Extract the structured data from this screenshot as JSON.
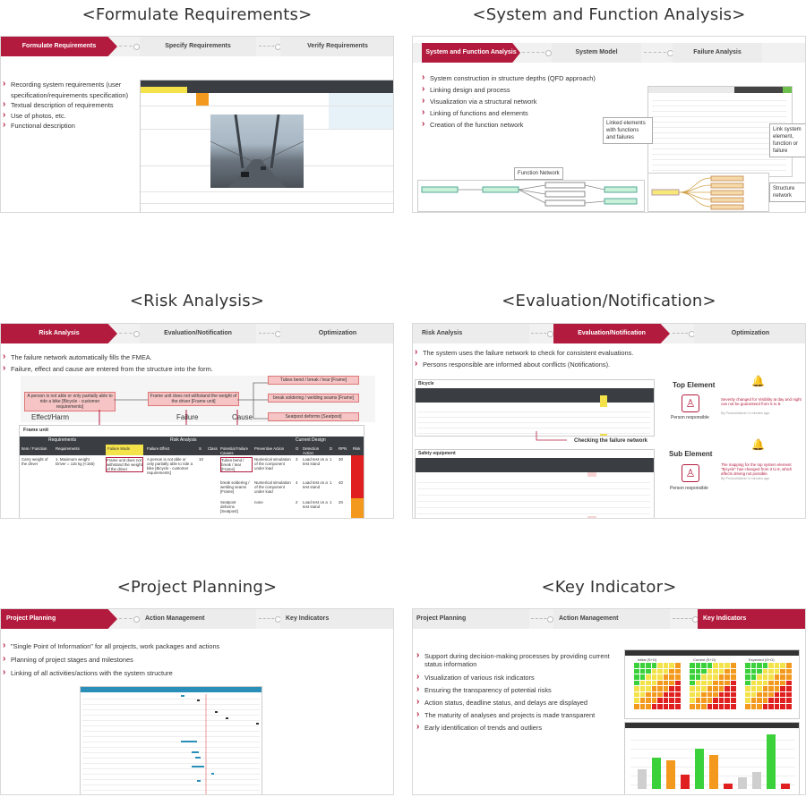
{
  "sections": [
    {
      "title": "<Formulate Requirements>",
      "tabs": [
        "Formulate Requirements",
        "Specify Requirements",
        "Verify Requirements"
      ],
      "active": 0,
      "bullets": [
        "Recording system requirements (user specification/requirements specification)",
        "Textual description of requirements",
        "Use of photos, etc.",
        "Functional description"
      ]
    },
    {
      "title": "<System and Function Analysis>",
      "tabs": [
        "System and Function Analysis",
        "System Model",
        "Failure Analysis"
      ],
      "active": 0,
      "bullets": [
        "System construction in structure depths (QFD approach)",
        "Linking design and process",
        "Visualization via a structural network",
        "Linking of functions and elements",
        "Creation of the function network"
      ],
      "callouts": [
        "Linked elements with functions and failures",
        "Link system element, function or failure",
        "Function Network",
        "Structure network"
      ]
    },
    {
      "title": "<Risk Analysis>",
      "tabs": [
        "Risk Analysis",
        "Evaluation/Notification",
        "Optimization"
      ],
      "active": 0,
      "bullets": [
        "The failure network automatically fills the FMEA.",
        "Failure, effect and cause are entered from the structure into the form."
      ],
      "labels": [
        "Effect/Harm",
        "Failure",
        "Cause"
      ],
      "boxes": [
        "A person is not able or only partially able to ride a bike [Bicycle - customer requirements]",
        "Frame unit does not withstand the weight of the driver [Frame unit]",
        "Tubes bend / break / tear [Frame]",
        "break soldering / welding seams [Frame]",
        "Seatpost deforms [Seatpost]"
      ],
      "table_title": "Frame unit",
      "groups": [
        "Requirements",
        "Risk Analysis",
        "Current Design"
      ],
      "columns": [
        "Item / Function",
        "Requirements",
        "Failure Mode",
        "Failure Effect",
        "S",
        "Class",
        "Potential Failure Causes",
        "Preventive Action",
        "O",
        "Detection Action",
        "D",
        "RPN",
        "Risk"
      ],
      "rows": [
        [
          "Carry weight of the driver",
          "1. Maximum weight Driver = 115 kg (<155)",
          "Frame unit does not withstand the weight of the driver",
          "A person is not able or only partially able to ride a bike [Bicycle - customer requirements]",
          "10",
          "",
          "Tubes bend / break / tear [Frame]",
          "Numerical simulation of the component under load",
          "3",
          "Load test on a test stand",
          "1",
          "30",
          ""
        ],
        [
          "",
          "",
          "",
          "",
          "",
          "",
          "break soldering / welding seams [Frame]",
          "Numerical simulation of the component under load",
          "4",
          "Load test on a test stand",
          "1",
          "40",
          ""
        ],
        [
          "",
          "",
          "",
          "",
          "",
          "",
          "Seatpost deforms [Seatpost]",
          "none",
          "2",
          "Load test on a test stand",
          "1",
          "20",
          ""
        ]
      ]
    },
    {
      "title": "<Evaluation/Notification>",
      "tabs": [
        "Risk Analysis",
        "Evaluation/Notification",
        "Optimization"
      ],
      "active": 1,
      "bullets": [
        "The system uses the failure network to check for consistent evaluations.",
        "Persons responsible are informed about conflicts (Notifications)."
      ],
      "top_element": "Top Element",
      "sub_element": "Sub Element",
      "person": "Person responsible",
      "check_label": "Checking the failure network",
      "note_top": "Severity changed for Visibility at day and night can not be guaranteed from 5 to 8.",
      "note_sub": "The mapping for the top system element \"Bicycle\" has changed from 3 to 8, which affects driving not possible.",
      "note_meta": "By ProductAdmin 5 minutes ago",
      "table1_title": "Bicycle",
      "table2_title": "Safety equipment"
    },
    {
      "title": "<Project Planning>",
      "tabs": [
        "Project Planning",
        "Action Management",
        "Key Indicators"
      ],
      "active": 0,
      "bullets": [
        "\"Single Point of Information\" for all projects, work packages and actions",
        "Planning of project stages and milestones",
        "Linking of all activities/actions with the system structure"
      ]
    },
    {
      "title": "<Key Indicator>",
      "tabs": [
        "Project Planning",
        "Action Management",
        "Key Indicators"
      ],
      "active": 2,
      "bullets": [
        "Support during decision-making processes by providing current status information",
        "Visualization of various risk indicators",
        "Ensuring the transparency of potential risks",
        "Action status, deadline status, and delays are displayed",
        "The maturity of analyses and projects is made transparent",
        "Early identification of trends and outliers"
      ],
      "heatmap_titles": [
        "Initial (S+O)",
        "Current (S+O)",
        "Expected (S+O)"
      ],
      "bar_chart": {
        "values": [
          0.35,
          0.55,
          0.5,
          0.25,
          0.7,
          0.6,
          0.1,
          0.2,
          0.3,
          0.95,
          0.1
        ],
        "colors": [
          "#cfcfcf",
          "#3bd13b",
          "#f39a1e",
          "#e02020",
          "#3bd13b",
          "#f39a1e",
          "#e02020",
          "#cfcfcf",
          "#cfcfcf",
          "#3bd13b",
          "#e02020"
        ]
      }
    }
  ]
}
